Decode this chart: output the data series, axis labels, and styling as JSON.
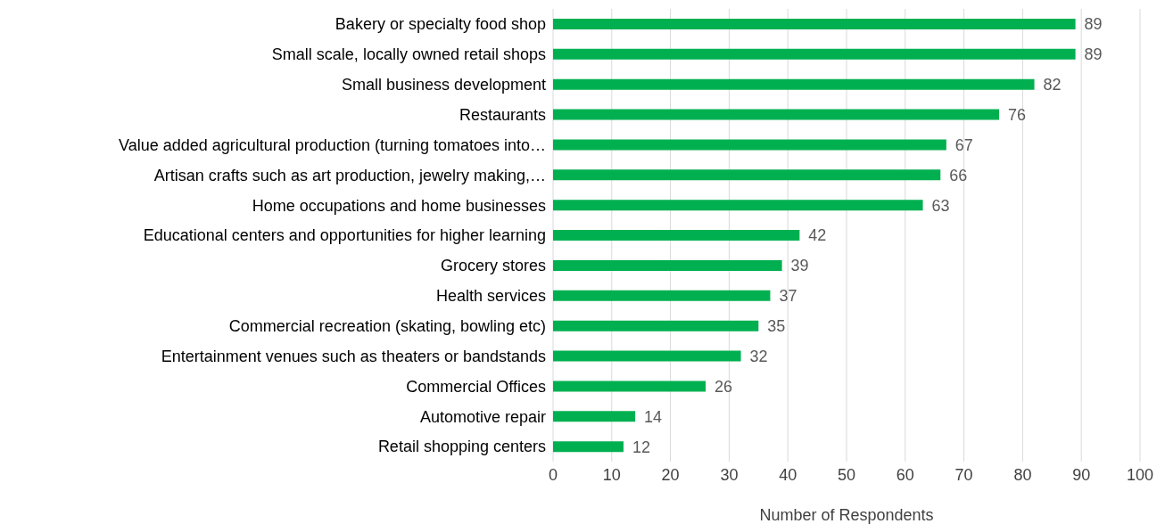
{
  "chart_data": {
    "type": "bar",
    "orientation": "horizontal",
    "xlabel": "Number of Respondents",
    "categories": [
      "Bakery or specialty food shop",
      "Small scale, locally owned retail shops",
      "Small business development",
      "Restaurants",
      "Value added agricultural production (turning tomatoes into…",
      "Artisan crafts such as art production, jewelry making,…",
      "Home occupations and home businesses",
      "Educational centers and opportunities for higher learning",
      "Grocery stores",
      "Health services",
      "Commercial recreation (skating, bowling etc)",
      "Entertainment venues such as theaters or bandstands",
      "Commercial Offices",
      "Automotive repair",
      "Retail shopping centers"
    ],
    "values": [
      89,
      89,
      82,
      76,
      67,
      66,
      63,
      42,
      39,
      37,
      35,
      32,
      26,
      14,
      12
    ],
    "color": "#00b050",
    "data_labels": true,
    "grid": "x",
    "legend": false,
    "xlim": [
      0,
      100
    ],
    "xticks": [
      0,
      10,
      20,
      30,
      40,
      50,
      60,
      70,
      80,
      90,
      100
    ]
  }
}
